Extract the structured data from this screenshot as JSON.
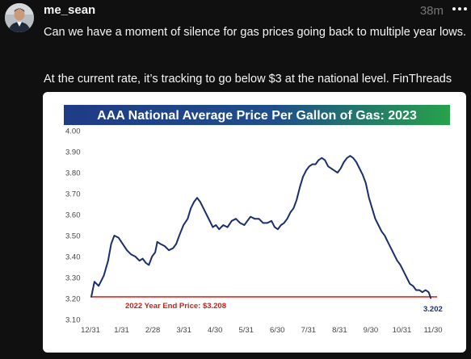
{
  "post": {
    "username": "me_sean",
    "time": "38m",
    "text_line1": "Can we have a moment of silence for gas prices going back to multiple year lows.",
    "text_line2": "At the current rate, it’s tracking to go below $3 at the national level. FinThreads"
  },
  "icons": {
    "avatar": "user-avatar",
    "more": "more-options-icon"
  },
  "colors": {
    "title_gradient_start": "#1f3b86",
    "title_gradient_end": "#27a24a",
    "line": "#1a2e6b",
    "reference_line": "#e0281f",
    "reference_label": "#c4231b"
  },
  "chart_data": {
    "type": "line",
    "title": "AAA National Average Price Per Gallon of Gas: 2023",
    "xlabel": "",
    "ylabel": "",
    "x_tick_labels": [
      "12/31",
      "1/31",
      "2/28",
      "3/31",
      "4/30",
      "5/31",
      "6/30",
      "7/31",
      "8/31",
      "9/30",
      "10/31",
      "11/30"
    ],
    "y_tick_labels": [
      "4.00",
      "3.90",
      "3.80",
      "3.70",
      "3.60",
      "3.50",
      "3.40",
      "3.30",
      "3.20",
      "3.10"
    ],
    "ylim": [
      3.1,
      4.0
    ],
    "grid": false,
    "legend": "none",
    "series": [
      {
        "points": [
          [
            0,
            3.208
          ],
          [
            3,
            3.28
          ],
          [
            7,
            3.26
          ],
          [
            12,
            3.31
          ],
          [
            16,
            3.38
          ],
          [
            19,
            3.46
          ],
          [
            22,
            3.5
          ],
          [
            26,
            3.49
          ],
          [
            30,
            3.46
          ],
          [
            34,
            3.43
          ],
          [
            38,
            3.41
          ],
          [
            42,
            3.4
          ],
          [
            46,
            3.38
          ],
          [
            49,
            3.39
          ],
          [
            52,
            3.37
          ],
          [
            55,
            3.36
          ],
          [
            58,
            3.4
          ],
          [
            61,
            3.42
          ],
          [
            63,
            3.47
          ],
          [
            66,
            3.46
          ],
          [
            70,
            3.45
          ],
          [
            74,
            3.43
          ],
          [
            78,
            3.44
          ],
          [
            81,
            3.46
          ],
          [
            84,
            3.5
          ],
          [
            88,
            3.55
          ],
          [
            92,
            3.58
          ],
          [
            95,
            3.63
          ],
          [
            98,
            3.66
          ],
          [
            101,
            3.68
          ],
          [
            104,
            3.66
          ],
          [
            107,
            3.63
          ],
          [
            110,
            3.6
          ],
          [
            113,
            3.57
          ],
          [
            116,
            3.54
          ],
          [
            119,
            3.55
          ],
          [
            122,
            3.53
          ],
          [
            126,
            3.55
          ],
          [
            130,
            3.54
          ],
          [
            134,
            3.57
          ],
          [
            138,
            3.58
          ],
          [
            142,
            3.56
          ],
          [
            146,
            3.55
          ],
          [
            149,
            3.57
          ],
          [
            152,
            3.59
          ],
          [
            156,
            3.58
          ],
          [
            160,
            3.58
          ],
          [
            164,
            3.56
          ],
          [
            168,
            3.56
          ],
          [
            172,
            3.57
          ],
          [
            175,
            3.54
          ],
          [
            178,
            3.53
          ],
          [
            181,
            3.55
          ],
          [
            184,
            3.56
          ],
          [
            187,
            3.58
          ],
          [
            190,
            3.61
          ],
          [
            193,
            3.63
          ],
          [
            196,
            3.67
          ],
          [
            199,
            3.73
          ],
          [
            202,
            3.78
          ],
          [
            205,
            3.81
          ],
          [
            208,
            3.83
          ],
          [
            211,
            3.84
          ],
          [
            214,
            3.84
          ],
          [
            217,
            3.86
          ],
          [
            220,
            3.87
          ],
          [
            223,
            3.86
          ],
          [
            226,
            3.83
          ],
          [
            229,
            3.82
          ],
          [
            232,
            3.81
          ],
          [
            235,
            3.8
          ],
          [
            238,
            3.82
          ],
          [
            241,
            3.85
          ],
          [
            244,
            3.87
          ],
          [
            247,
            3.88
          ],
          [
            250,
            3.87
          ],
          [
            253,
            3.85
          ],
          [
            256,
            3.82
          ],
          [
            259,
            3.79
          ],
          [
            262,
            3.75
          ],
          [
            265,
            3.68
          ],
          [
            268,
            3.63
          ],
          [
            271,
            3.58
          ],
          [
            274,
            3.55
          ],
          [
            277,
            3.52
          ],
          [
            280,
            3.5
          ],
          [
            283,
            3.47
          ],
          [
            286,
            3.44
          ],
          [
            289,
            3.41
          ],
          [
            292,
            3.38
          ],
          [
            295,
            3.36
          ],
          [
            298,
            3.33
          ],
          [
            301,
            3.3
          ],
          [
            304,
            3.27
          ],
          [
            307,
            3.26
          ],
          [
            310,
            3.24
          ],
          [
            313,
            3.24
          ],
          [
            316,
            3.23
          ],
          [
            319,
            3.24
          ],
          [
            322,
            3.23
          ],
          [
            324,
            3.202
          ]
        ]
      }
    ],
    "reference_line": {
      "value": 3.208,
      "label": "2022 Year End Price: $3.208"
    },
    "end_label": "3.202"
  }
}
